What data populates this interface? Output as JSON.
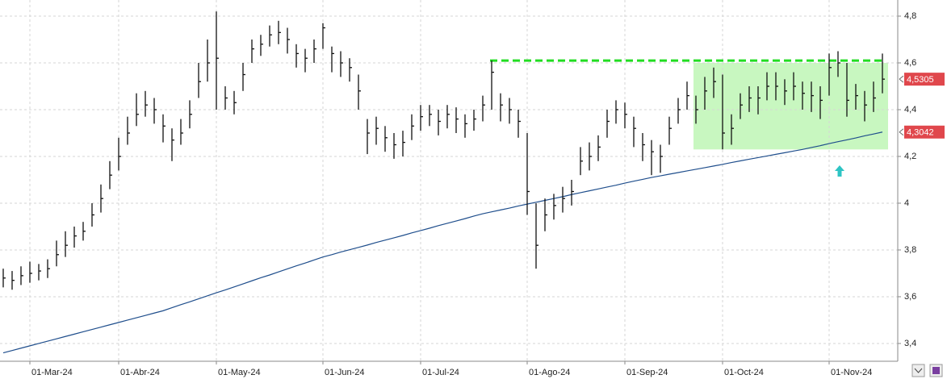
{
  "chart_data": {
    "type": "ohlc",
    "categories": [
      null,
      null,
      null,
      "01-Mar-24",
      null,
      null,
      null,
      null,
      null,
      null,
      null,
      null,
      null,
      "01-Abr-24",
      null,
      null,
      null,
      null,
      null,
      null,
      null,
      null,
      null,
      null,
      "01-May-24",
      null,
      null,
      null,
      null,
      null,
      null,
      null,
      null,
      null,
      null,
      null,
      "01-Jun-24",
      null,
      null,
      null,
      null,
      null,
      null,
      null,
      null,
      null,
      null,
      "01-Jul-24",
      null,
      null,
      null,
      null,
      null,
      null,
      null,
      null,
      null,
      null,
      null,
      "01-Ago-24",
      null,
      null,
      null,
      null,
      null,
      null,
      null,
      null,
      null,
      null,
      "01-Sep-24",
      null,
      null,
      null,
      null,
      null,
      null,
      null,
      null,
      null,
      null,
      "01-Oct-24",
      null,
      null,
      null,
      null,
      null,
      null,
      null,
      null,
      null,
      null,
      null,
      "01-Nov-24",
      null,
      null,
      null,
      null,
      null,
      null
    ],
    "high": [
      3.72,
      3.71,
      3.73,
      3.75,
      3.74,
      3.76,
      3.84,
      3.88,
      3.9,
      3.92,
      4.0,
      4.08,
      4.18,
      4.28,
      4.37,
      4.47,
      4.48,
      4.45,
      4.38,
      4.32,
      4.36,
      4.44,
      4.6,
      4.7,
      4.82,
      4.5,
      4.48,
      4.6,
      4.7,
      4.72,
      4.76,
      4.78,
      4.75,
      4.68,
      4.66,
      4.7,
      4.77,
      4.67,
      4.65,
      4.62,
      4.55,
      4.36,
      4.37,
      4.33,
      4.3,
      4.31,
      4.38,
      4.42,
      4.42,
      4.4,
      4.42,
      4.41,
      4.38,
      4.4,
      4.46,
      4.61,
      4.47,
      4.45,
      4.4,
      4.3,
      4.0,
      4.02,
      4.04,
      4.07,
      4.1,
      4.24,
      4.26,
      4.29,
      4.4,
      4.44,
      4.43,
      4.37,
      4.3,
      4.27,
      4.25,
      4.37,
      4.45,
      4.52,
      4.46,
      4.54,
      4.58,
      4.55,
      4.38,
      4.47,
      4.5,
      4.5,
      4.56,
      4.56,
      4.53,
      4.56,
      4.52,
      4.52,
      4.5,
      4.64,
      4.65,
      4.6,
      4.51,
      4.48,
      4.52,
      4.64
    ],
    "low": [
      3.64,
      3.63,
      3.65,
      3.66,
      3.67,
      3.68,
      3.73,
      3.77,
      3.81,
      3.84,
      3.9,
      3.96,
      4.06,
      4.14,
      4.25,
      4.33,
      4.37,
      4.34,
      4.26,
      4.18,
      4.25,
      4.32,
      4.45,
      4.52,
      4.4,
      4.4,
      4.38,
      4.48,
      4.6,
      4.63,
      4.67,
      4.68,
      4.64,
      4.58,
      4.56,
      4.6,
      4.66,
      4.56,
      4.54,
      4.52,
      4.4,
      4.21,
      4.25,
      4.22,
      4.19,
      4.2,
      4.27,
      4.31,
      4.33,
      4.29,
      4.32,
      4.3,
      4.28,
      4.31,
      4.35,
      4.4,
      4.35,
      4.34,
      4.28,
      3.95,
      3.72,
      3.88,
      3.93,
      3.96,
      3.99,
      4.12,
      4.14,
      4.18,
      4.28,
      4.34,
      4.32,
      4.24,
      4.18,
      4.12,
      4.13,
      4.25,
      4.34,
      4.4,
      4.34,
      4.4,
      4.45,
      4.23,
      4.25,
      4.36,
      4.39,
      4.38,
      4.44,
      4.44,
      4.42,
      4.44,
      4.4,
      4.39,
      4.36,
      4.46,
      4.54,
      4.37,
      4.4,
      4.35,
      4.39,
      4.47
    ],
    "close": [
      3.68,
      3.67,
      3.69,
      3.7,
      3.71,
      3.72,
      3.78,
      3.82,
      3.86,
      3.88,
      3.95,
      4.02,
      4.12,
      4.2,
      4.3,
      4.38,
      4.42,
      4.4,
      4.33,
      4.27,
      4.3,
      4.38,
      4.52,
      4.6,
      4.62,
      4.45,
      4.43,
      4.55,
      4.66,
      4.68,
      4.72,
      4.73,
      4.7,
      4.64,
      4.62,
      4.66,
      4.75,
      4.64,
      4.6,
      4.58,
      4.48,
      4.3,
      4.32,
      4.28,
      4.25,
      4.26,
      4.33,
      4.37,
      4.38,
      4.35,
      4.38,
      4.36,
      4.34,
      4.36,
      4.42,
      4.56,
      4.42,
      4.4,
      4.35,
      4.05,
      3.82,
      3.95,
      3.99,
      4.02,
      4.05,
      4.18,
      4.2,
      4.24,
      4.35,
      4.4,
      4.38,
      4.32,
      4.25,
      4.22,
      4.2,
      4.32,
      4.4,
      4.46,
      4.4,
      4.48,
      4.52,
      4.3,
      4.32,
      4.42,
      4.45,
      4.45,
      4.5,
      4.5,
      4.48,
      4.5,
      4.47,
      4.46,
      4.44,
      4.58,
      4.6,
      4.44,
      4.46,
      4.42,
      4.45,
      4.5305
    ],
    "close_last_label": "4,5305",
    "color": "#111111",
    "ma": {
      "color": "#1f4e8c",
      "last_label": "4,3042",
      "values": [
        3.36,
        3.37,
        3.38,
        3.39,
        3.4,
        3.41,
        3.42,
        3.43,
        3.44,
        3.45,
        3.46,
        3.47,
        3.48,
        3.49,
        3.5,
        3.51,
        3.52,
        3.53,
        3.54,
        3.553,
        3.566,
        3.578,
        3.591,
        3.604,
        3.617,
        3.629,
        3.642,
        3.655,
        3.668,
        3.681,
        3.693,
        3.706,
        3.719,
        3.732,
        3.744,
        3.757,
        3.77,
        3.78,
        3.791,
        3.801,
        3.811,
        3.821,
        3.832,
        3.842,
        3.852,
        3.862,
        3.873,
        3.883,
        3.893,
        3.904,
        3.914,
        3.924,
        3.934,
        3.945,
        3.955,
        3.963,
        3.971,
        3.979,
        3.988,
        3.996,
        4.004,
        4.012,
        4.02,
        4.028,
        4.037,
        4.045,
        4.053,
        4.061,
        4.069,
        4.077,
        4.086,
        4.094,
        4.102,
        4.11,
        4.117,
        4.124,
        4.131,
        4.138,
        4.145,
        4.152,
        4.159,
        4.166,
        4.174,
        4.181,
        4.188,
        4.195,
        4.202,
        4.209,
        4.216,
        4.223,
        4.23,
        4.238,
        4.246,
        4.255,
        4.263,
        4.271,
        4.279,
        4.288,
        4.296,
        4.3042
      ]
    },
    "tag_color": "#e0474c",
    "resistance": {
      "value": 4.61,
      "color": "#22dd22"
    },
    "zone": {
      "range": [
        4.23,
        4.6
      ],
      "color": "#c8f7c0"
    },
    "ylim": [
      3.324,
      4.869
    ],
    "yticks": [
      {
        "value": 3.4,
        "label": "3,4"
      },
      {
        "value": 3.6,
        "label": "3,6"
      },
      {
        "value": 3.8,
        "label": "3,8"
      },
      4,
      {
        "value": 4.2,
        "label": "4,2"
      },
      {
        "value": 4.4,
        "label": "4,4"
      },
      {
        "value": 4.6,
        "label": "4,6"
      },
      {
        "value": 4.8,
        "label": "4,8"
      }
    ],
    "grid": true
  }
}
